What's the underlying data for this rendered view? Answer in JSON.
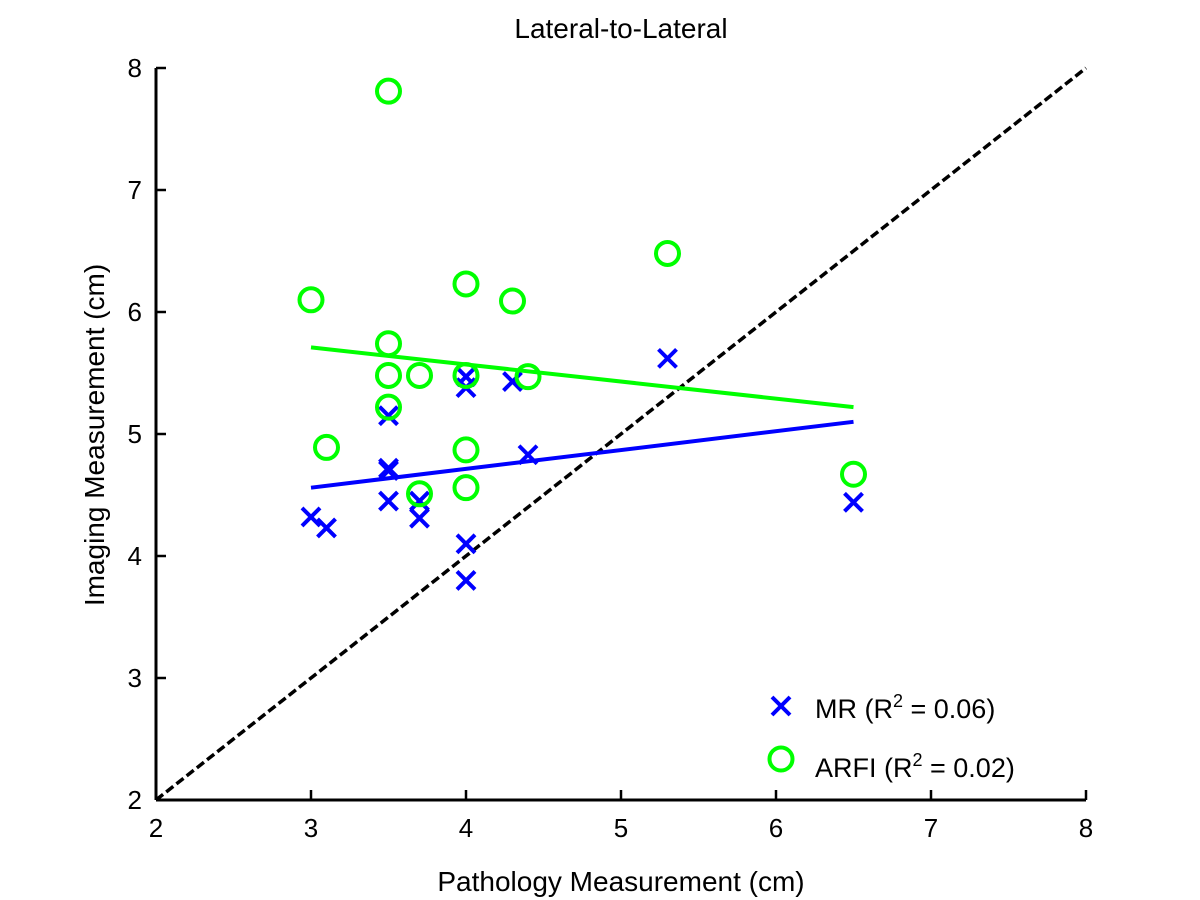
{
  "chart_data": {
    "type": "scatter",
    "title": "Lateral-to-Lateral",
    "xlabel": "Pathology Measurement (cm)",
    "ylabel": "Imaging Measurement (cm)",
    "xlim": [
      2,
      8
    ],
    "ylim": [
      2,
      8
    ],
    "xticks": [
      2,
      3,
      4,
      5,
      6,
      7,
      8
    ],
    "yticks": [
      2,
      3,
      4,
      5,
      6,
      7,
      8
    ],
    "grid": false,
    "legend_position": "bottom-right",
    "series": [
      {
        "name_prefix": "MR (R",
        "name_sup": "2",
        "name_suffix": " = 0.06)",
        "marker": "x",
        "color": "#0000ff",
        "points": [
          [
            3.0,
            4.32
          ],
          [
            3.1,
            4.23
          ],
          [
            3.5,
            4.45
          ],
          [
            3.5,
            4.7
          ],
          [
            3.5,
            4.72
          ],
          [
            3.5,
            5.15
          ],
          [
            3.7,
            4.31
          ],
          [
            3.7,
            4.45
          ],
          [
            4.0,
            3.8
          ],
          [
            4.0,
            4.1
          ],
          [
            4.0,
            5.38
          ],
          [
            4.0,
            5.47
          ],
          [
            4.3,
            5.43
          ],
          [
            4.4,
            4.83
          ],
          [
            5.3,
            5.62
          ],
          [
            6.5,
            4.44
          ]
        ],
        "fit": [
          [
            3.0,
            4.56
          ],
          [
            6.5,
            5.1
          ]
        ]
      },
      {
        "name_prefix": "ARFI (R",
        "name_sup": "2",
        "name_suffix": " = 0.02)",
        "marker": "o",
        "color": "#00ff00",
        "points": [
          [
            3.0,
            6.1
          ],
          [
            3.1,
            4.89
          ],
          [
            3.5,
            7.81
          ],
          [
            3.5,
            5.74
          ],
          [
            3.5,
            5.48
          ],
          [
            3.5,
            5.22
          ],
          [
            3.7,
            5.48
          ],
          [
            3.7,
            4.51
          ],
          [
            4.0,
            6.23
          ],
          [
            4.0,
            5.48
          ],
          [
            4.0,
            4.87
          ],
          [
            4.0,
            4.56
          ],
          [
            4.3,
            6.09
          ],
          [
            4.4,
            5.47
          ],
          [
            5.3,
            6.48
          ],
          [
            6.5,
            4.67
          ]
        ],
        "fit": [
          [
            3.0,
            5.71
          ],
          [
            6.5,
            5.22
          ]
        ]
      }
    ],
    "identity_line": {
      "points": [
        [
          2,
          2
        ],
        [
          8,
          8
        ]
      ],
      "color": "#000000",
      "style": "dashed"
    }
  }
}
